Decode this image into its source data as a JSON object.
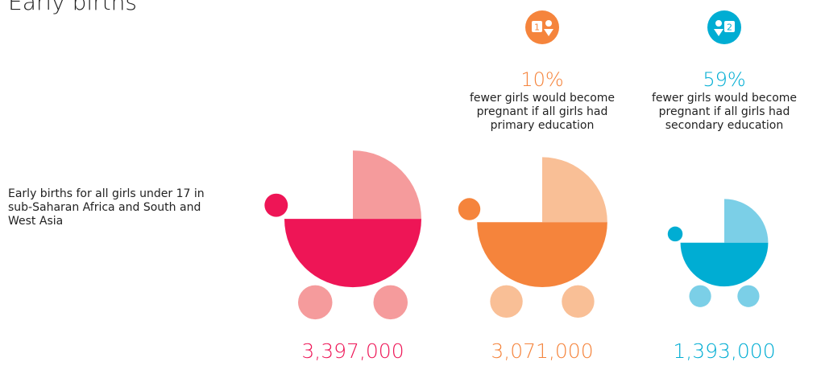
{
  "title": "Early births",
  "row_label": "Early births for all girls under 17 in sub-Saharan Africa and South and West Asia",
  "colors": {
    "total": "#ee1556",
    "total_light": "#f59b9c",
    "primary": "#f5843c",
    "primary_light": "#f9bf96",
    "secondary": "#00add3",
    "secondary_light": "#7bcfe7"
  },
  "scenarios": [
    {
      "icon": "primary-education-icon",
      "icon_digit": "1",
      "percent": "10%",
      "description": "fewer girls would become pregnant if all girls had primary education"
    },
    {
      "icon": "secondary-education-icon",
      "icon_digit": "2",
      "percent": "59%",
      "description": "fewer girls would become pregnant if all girls had secondary education"
    }
  ],
  "chart_data": {
    "type": "bar",
    "categories": [
      "",
      "",
      ""
    ],
    "values": [
      3397000,
      3071000,
      1393000
    ],
    "value_labels": [
      "3,397,000",
      "3,071,000",
      "1,393,000"
    ],
    "title": "Early births",
    "xlabel": "",
    "ylabel": ""
  }
}
